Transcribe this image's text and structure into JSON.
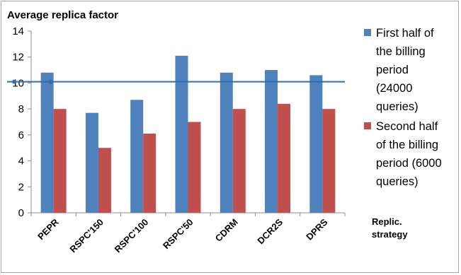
{
  "chart_data": {
    "type": "bar",
    "title": "Average replica factor",
    "xlabel": "Replic. strategy",
    "ylabel": "",
    "categories": [
      "PEPR",
      "RSPC'150",
      "RSPC'100",
      "RSPC'50",
      "CDRM",
      "DCR2S",
      "DPRS"
    ],
    "series": [
      {
        "name": "First half of the billing period (24000 queries)",
        "color": "#4f81bd",
        "values": [
          10.8,
          7.7,
          8.7,
          12.1,
          10.8,
          11.0,
          10.6
        ]
      },
      {
        "name": "Second half of the billing period (6000 queries)",
        "color": "#c0504d",
        "values": [
          8.0,
          5.0,
          6.1,
          7.0,
          8.0,
          8.4,
          8.0
        ]
      }
    ],
    "ylim": [
      0,
      14
    ],
    "yticks": [
      0,
      2,
      4,
      6,
      8,
      10,
      12,
      14
    ],
    "reference_line": {
      "value": 10.1,
      "color": "#2f6db5"
    },
    "grid": false,
    "legend_position": "right"
  },
  "legend": {
    "first_lines": [
      "First half of",
      "the billing",
      "period",
      "(24000",
      "queries)"
    ],
    "second_lines": [
      "Second half",
      "of the billing",
      "period (6000",
      "queries)"
    ]
  },
  "axis_title_lines": [
    "Replic.",
    "strategy"
  ]
}
